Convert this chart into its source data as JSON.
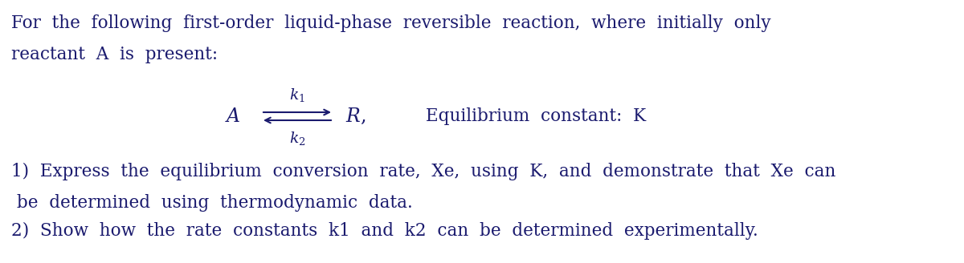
{
  "background_color": "#ffffff",
  "text_color": "#1a1a6e",
  "figsize": [
    12.0,
    3.28
  ],
  "dpi": 100,
  "line1": "For  the  following  first-order  liquid-phase  reversible  reaction,  where  initially  only",
  "line2": "reactant  A  is  present:",
  "equilibrium_text": "Equilibrium  constant:  K",
  "item1": "1)  Express  the  equilibrium  conversion  rate,  Xe,  using  K,  and  demonstrate  that  Xe  can",
  "item1b": " be  determined  using  thermodynamic  data.",
  "item2": "2)  Show  how  the  rate  constants  k1  and  k2  can  be  determined  experimentally.",
  "font_size": 15.5,
  "reaction_font_size": 17.0,
  "k_font_size": 13.5
}
